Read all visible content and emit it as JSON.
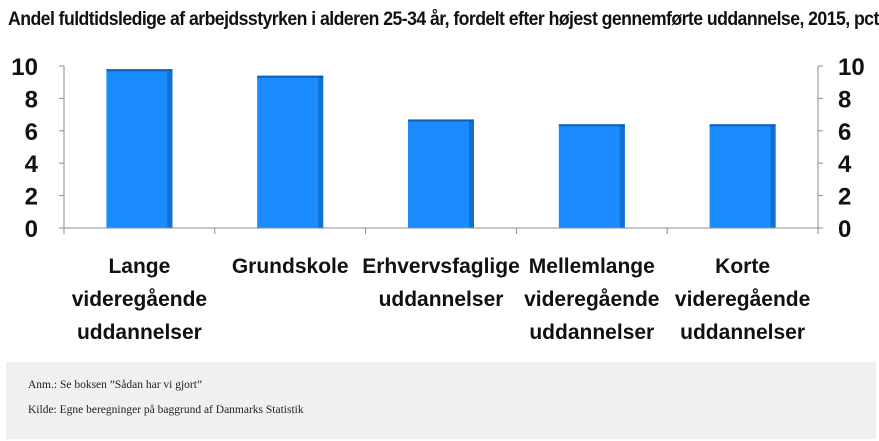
{
  "chart_data": {
    "type": "bar",
    "title": "Andel fuldtidsledige af arbejdsstyrken i alderen 25-34 år, fordelt efter højest gennemførte uddannelse, 2015, pct.",
    "categories": [
      [
        "Lange",
        "videregående",
        "uddannelser"
      ],
      [
        "Grundskole"
      ],
      [
        "Erhvervsfaglige",
        "uddannelser"
      ],
      [
        "Mellemlange",
        "videregående",
        "uddannelser"
      ],
      [
        "Korte",
        "videregående",
        "uddannelser"
      ]
    ],
    "values": [
      9.8,
      9.4,
      6.7,
      6.4,
      6.4
    ],
    "yticks": [
      "0",
      "2",
      "4",
      "6",
      "8",
      "10"
    ],
    "ylim": [
      0,
      10
    ],
    "grid": false,
    "legend": "none",
    "bar_color": "#1a8cff",
    "bar_shade_color": "#1170d0"
  },
  "notes": {
    "anm": "Anm.: Se boksen ”Sådan har vi gjort”",
    "kilde": "Kilde: Egne beregninger på baggrund  af Danmarks Statistik"
  }
}
